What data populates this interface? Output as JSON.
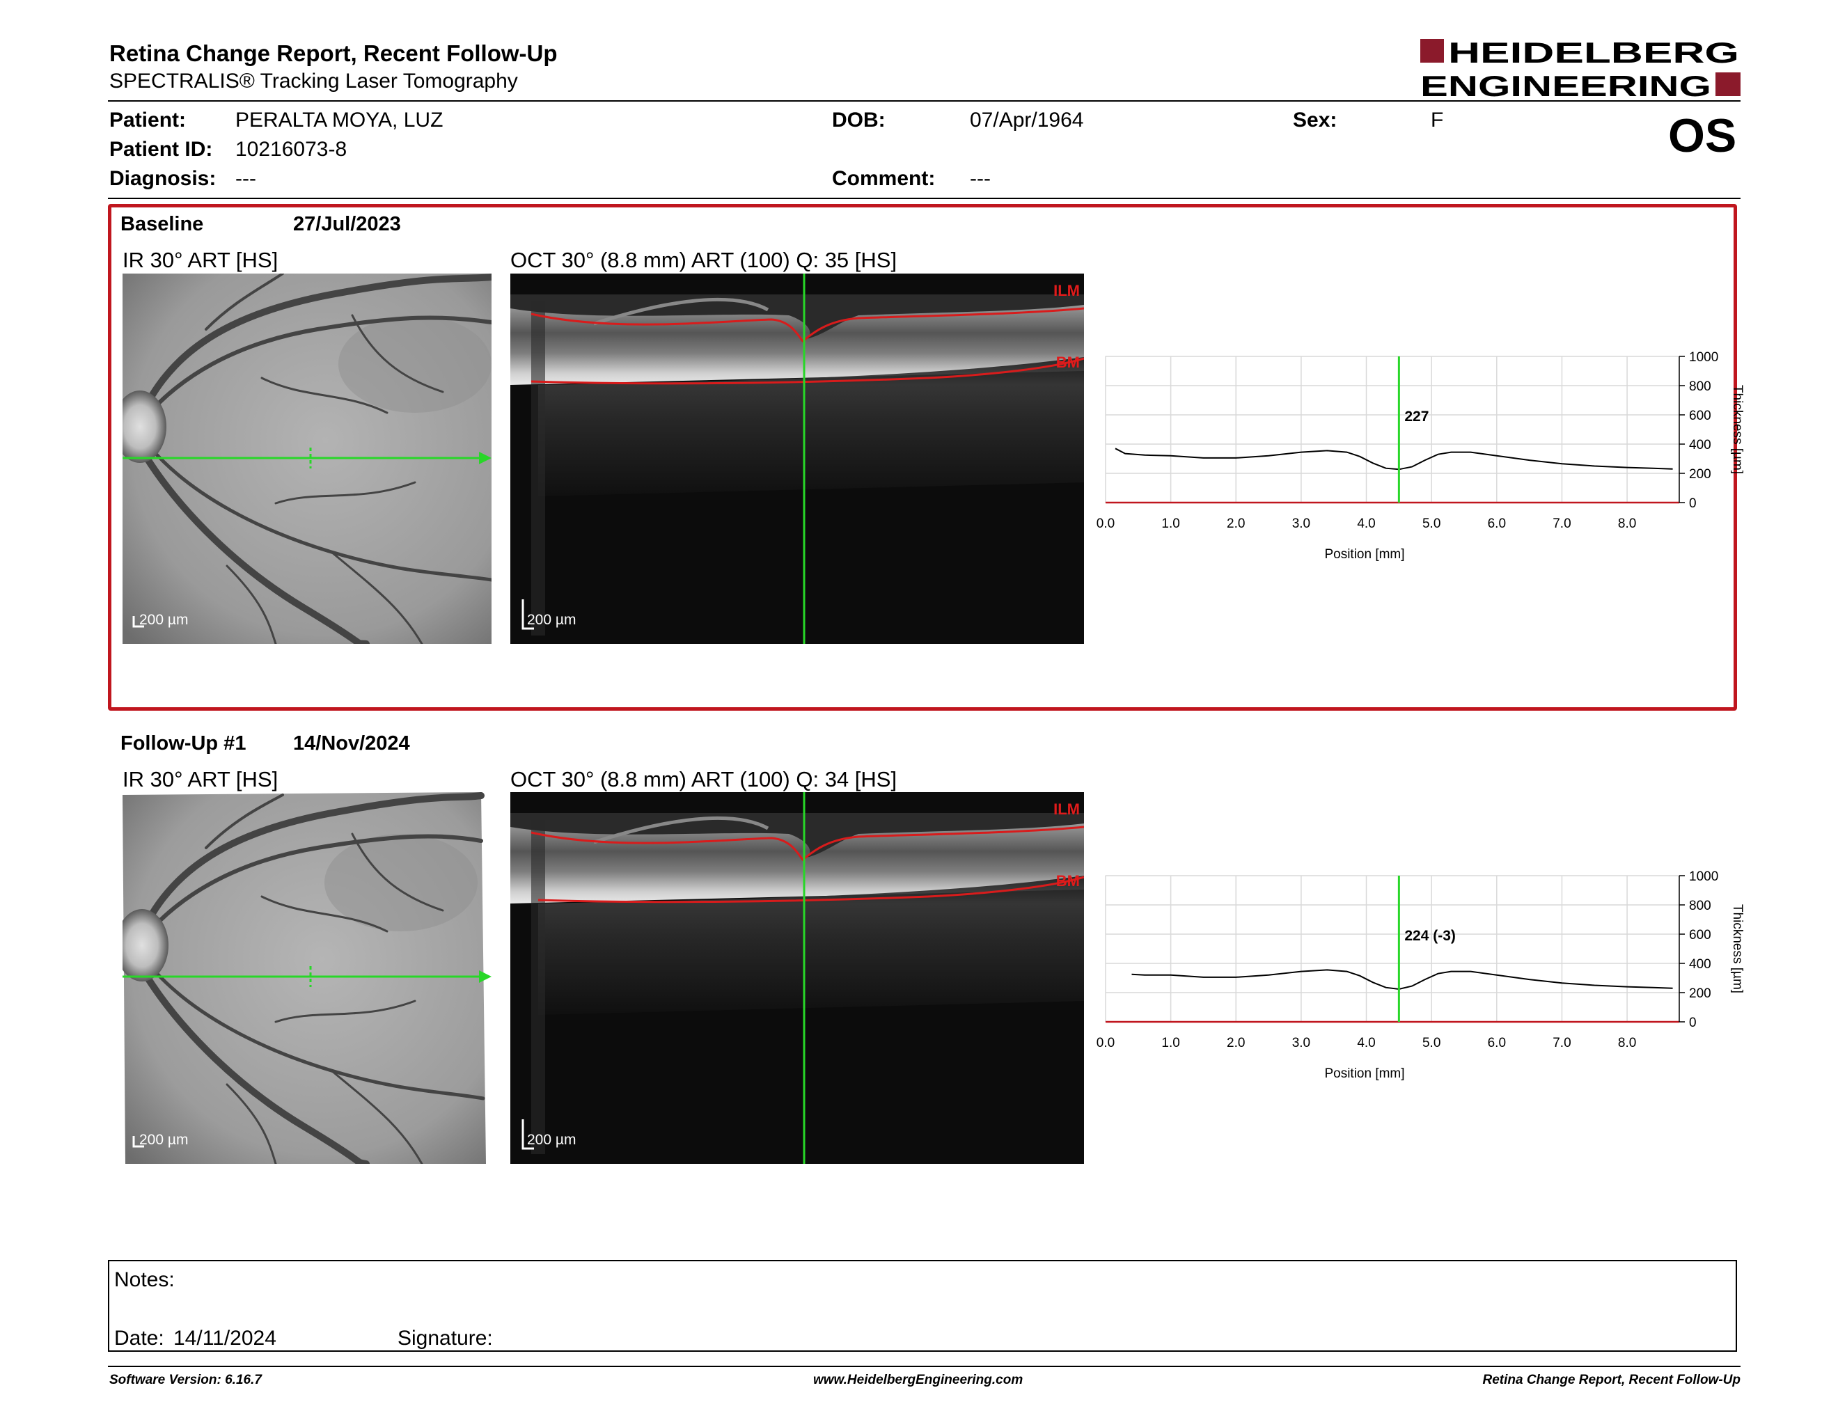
{
  "report": {
    "title": "Retina Change Report, Recent Follow-Up",
    "subtitle": "SPECTRALIS® Tracking Laser Tomography"
  },
  "brand": {
    "line1": "HEIDELBERG",
    "line2": "ENGINEERING",
    "color": "#8b1a2b"
  },
  "patient": {
    "name_label": "Patient:",
    "name": "PERALTA MOYA, LUZ",
    "id_label": "Patient ID:",
    "id": "10216073-8",
    "diagnosis_label": "Diagnosis:",
    "diagnosis": "---",
    "dob_label": "DOB:",
    "dob": "07/Apr/1964",
    "comment_label": "Comment:",
    "comment": "---",
    "sex_label": "Sex:",
    "sex": "F",
    "eye": "OS"
  },
  "baseline": {
    "label": "Baseline",
    "date": "27/Jul/2023",
    "ir_label": "IR 30° ART [HS]",
    "oct_label": "OCT 30° (8.8 mm) ART (100) Q: 35 [HS]",
    "ir_scale": "200 µm",
    "oct_scale": "200 µm",
    "layer_top": "ILM",
    "layer_bottom": "BM",
    "border_color": "#c0161e"
  },
  "followup": {
    "label": "Follow-Up #1",
    "date": "14/Nov/2024",
    "ir_label": "IR 30° ART [HS]",
    "oct_label": "OCT 30° (8.8 mm) ART (100) Q: 34 [HS]",
    "ir_scale": "200 µm",
    "oct_scale": "200 µm",
    "layer_top": "ILM",
    "layer_bottom": "BM"
  },
  "chart_data": [
    {
      "type": "line",
      "xlabel": "Position [mm]",
      "ylabel": "Thickness [µm]",
      "xlim": [
        0,
        8.8
      ],
      "ylim": [
        0,
        1000
      ],
      "xticks": [
        "0.0",
        "1.0",
        "2.0",
        "3.0",
        "4.0",
        "5.0",
        "6.0",
        "7.0",
        "8.0"
      ],
      "yticks": [
        "0",
        "200",
        "400",
        "600",
        "800",
        "1000"
      ],
      "grid": true,
      "cursor_x": 4.5,
      "cursor_label": "227",
      "x": [
        0.15,
        0.3,
        0.6,
        1.0,
        1.5,
        2.0,
        2.5,
        3.0,
        3.4,
        3.7,
        3.9,
        4.1,
        4.3,
        4.5,
        4.7,
        4.9,
        5.1,
        5.3,
        5.6,
        6.0,
        6.5,
        7.0,
        7.5,
        8.0,
        8.4,
        8.7
      ],
      "y": [
        370,
        335,
        325,
        320,
        305,
        305,
        320,
        345,
        355,
        345,
        315,
        270,
        235,
        227,
        245,
        290,
        330,
        345,
        345,
        320,
        290,
        265,
        250,
        240,
        235,
        230
      ]
    },
    {
      "type": "line",
      "xlabel": "Position [mm]",
      "ylabel": "Thickness [µm]",
      "xlim": [
        0,
        8.8
      ],
      "ylim": [
        0,
        1000
      ],
      "xticks": [
        "0.0",
        "1.0",
        "2.0",
        "3.0",
        "4.0",
        "5.0",
        "6.0",
        "7.0",
        "8.0"
      ],
      "yticks": [
        "0",
        "200",
        "400",
        "600",
        "800",
        "1000"
      ],
      "grid": true,
      "cursor_x": 4.5,
      "cursor_label": "224 (-3)",
      "x": [
        0.4,
        0.6,
        1.0,
        1.5,
        2.0,
        2.5,
        3.0,
        3.4,
        3.7,
        3.9,
        4.1,
        4.3,
        4.5,
        4.7,
        4.9,
        5.1,
        5.3,
        5.6,
        6.0,
        6.5,
        7.0,
        7.5,
        8.0,
        8.4,
        8.7
      ],
      "y": [
        325,
        320,
        320,
        305,
        305,
        320,
        345,
        355,
        345,
        315,
        270,
        235,
        224,
        245,
        290,
        330,
        345,
        345,
        320,
        290,
        265,
        250,
        240,
        235,
        230
      ]
    }
  ],
  "notes": {
    "notes_label": "Notes:",
    "date_label": "Date:",
    "date": "14/11/2024",
    "signature_label": "Signature:"
  },
  "footer": {
    "version": "Software Version: 6.16.7",
    "url": "www.HeidelbergEngineering.com",
    "report": "Retina Change Report, Recent Follow-Up"
  }
}
